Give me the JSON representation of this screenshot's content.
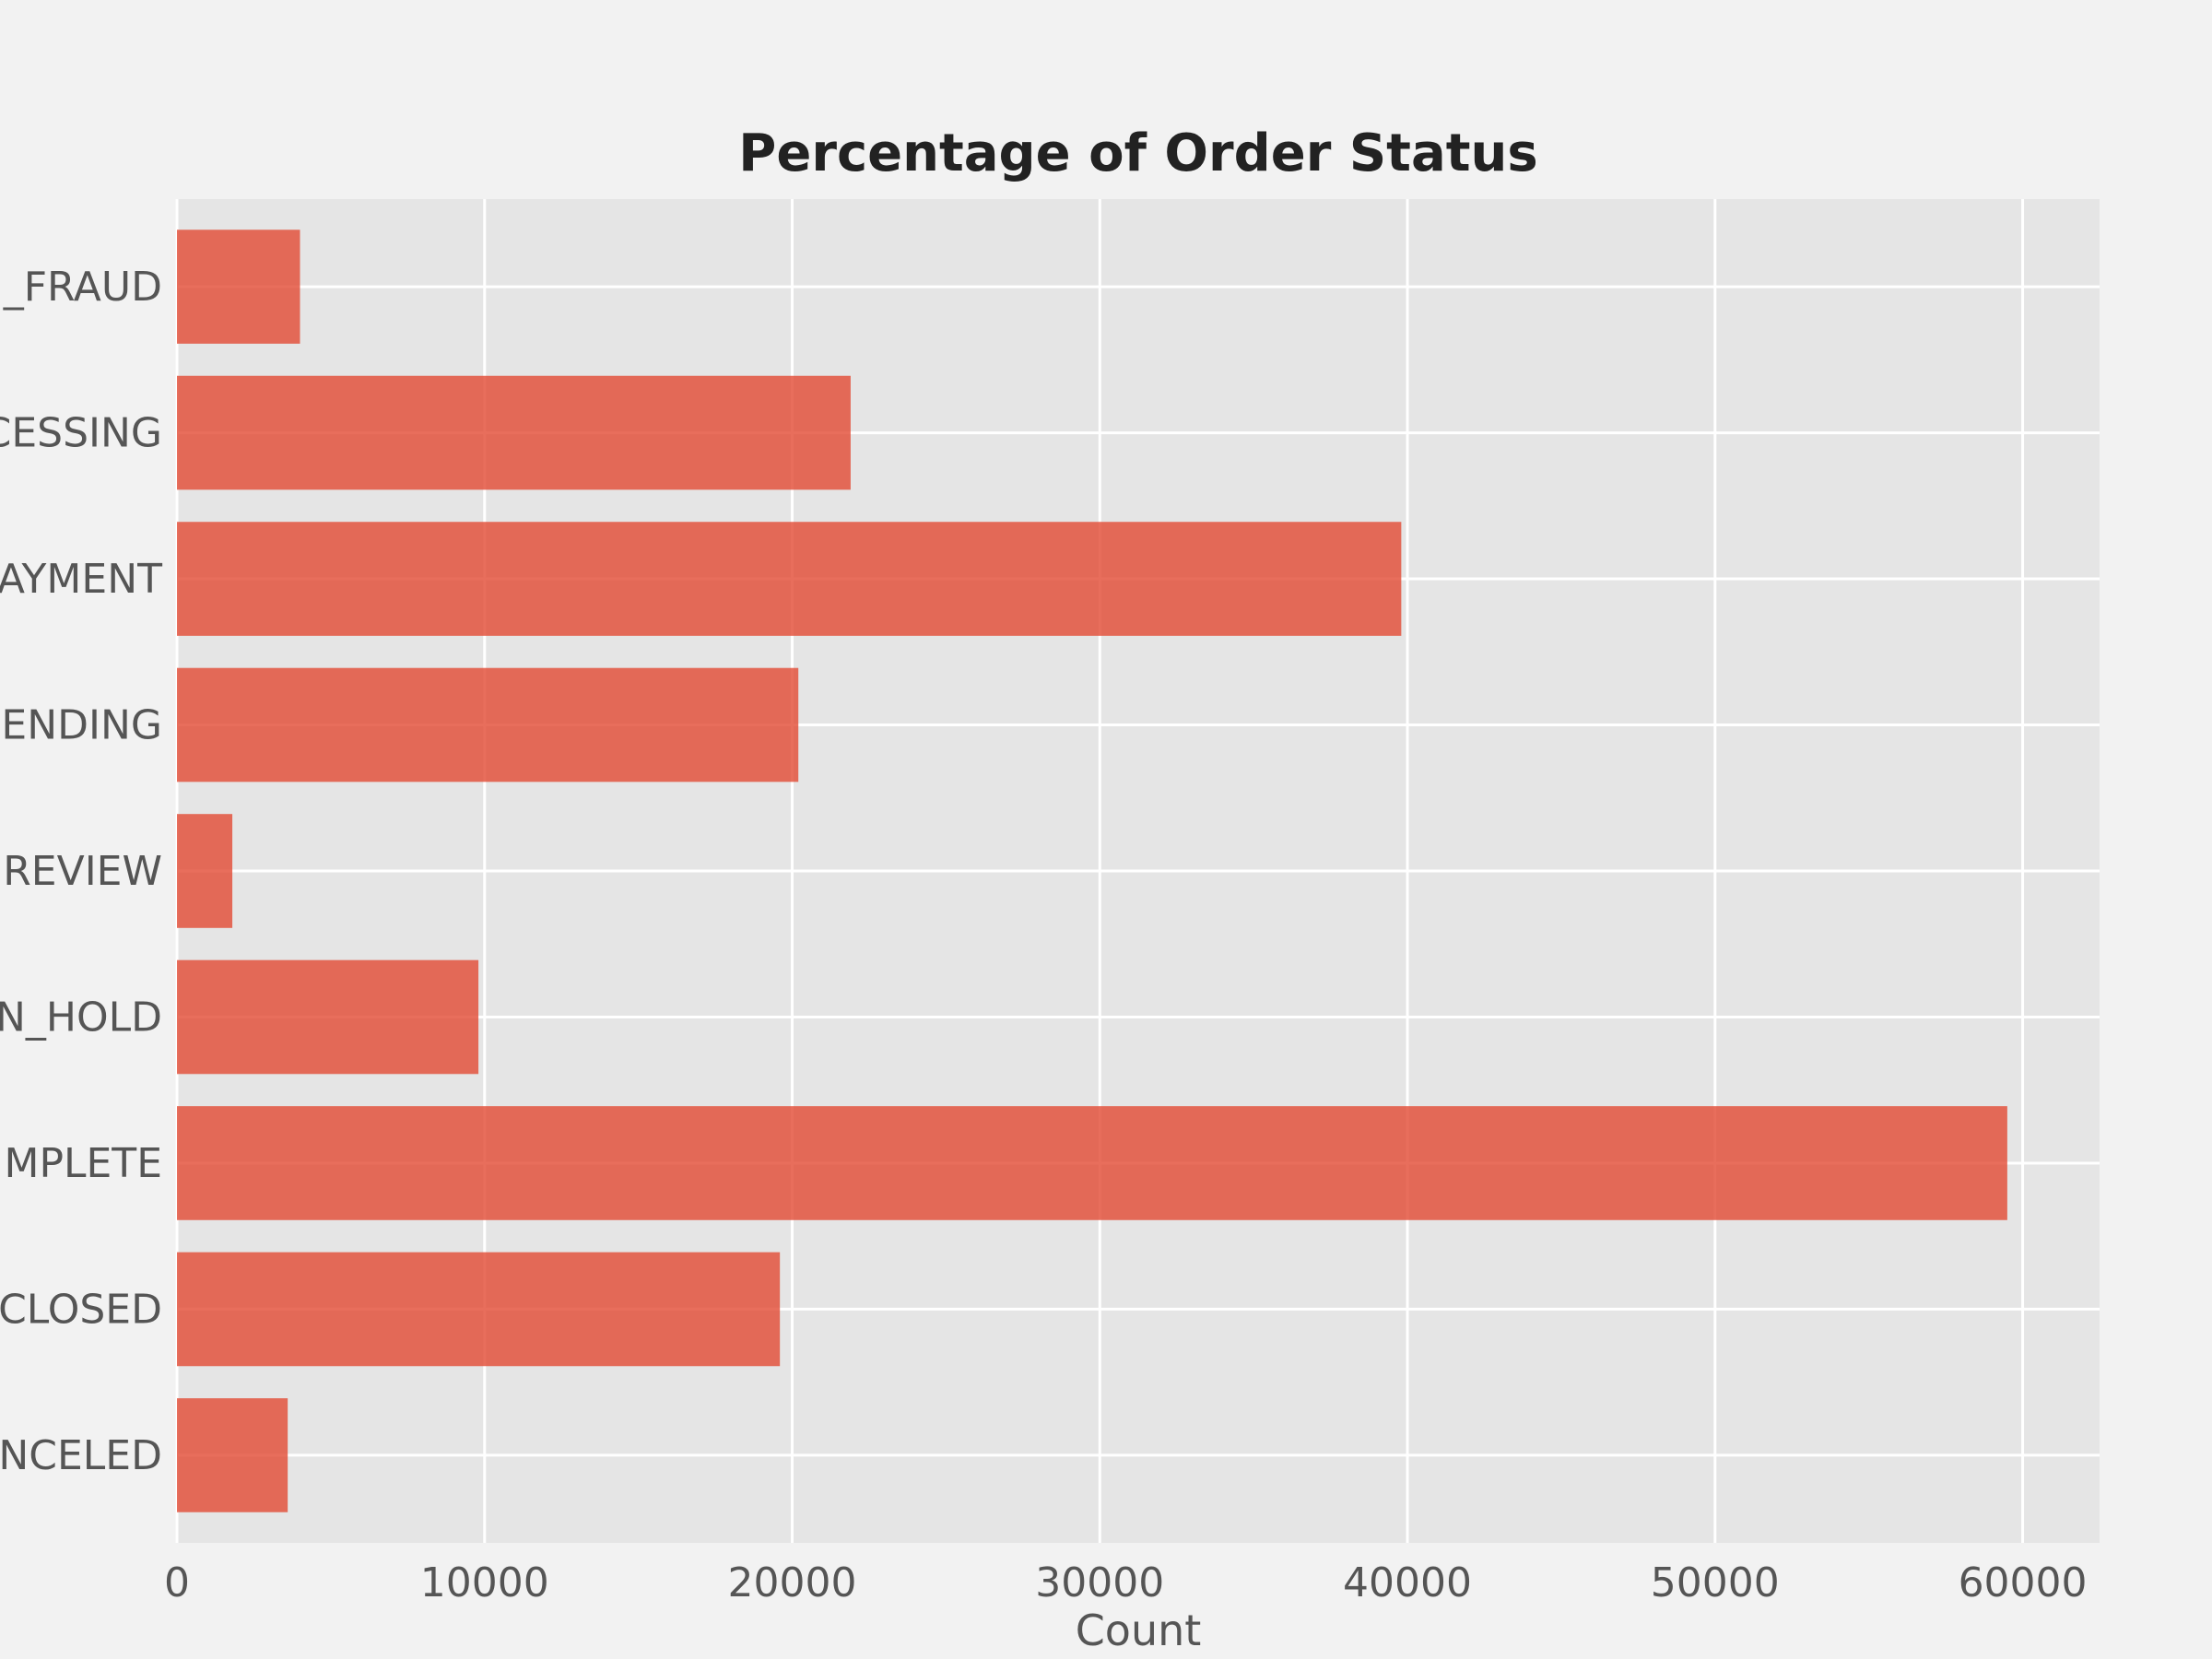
{
  "chart_data": {
    "type": "bar",
    "orientation": "horizontal",
    "title": "Percentage of Order Status",
    "xlabel": "Count",
    "ylabel": "",
    "categories": [
      "_FRAUD",
      "CESSING",
      "AYMENT",
      "ENDING",
      "REVIEW",
      "N_HOLD",
      "MPLETE",
      "CLOSED",
      "NCELED"
    ],
    "values": [
      4000,
      21900,
      39800,
      20200,
      1800,
      9800,
      59500,
      19600,
      3600
    ],
    "xlim": [
      0,
      62500
    ],
    "xticks": [
      0,
      10000,
      20000,
      30000,
      40000,
      50000,
      60000
    ],
    "grid": true,
    "legend": "none"
  },
  "colors": {
    "background": "#f2f2f2",
    "plot_background": "#e5e5e5",
    "bar": "#e24a33",
    "grid": "#ffffff",
    "text": "#555555",
    "title": "#222222"
  }
}
